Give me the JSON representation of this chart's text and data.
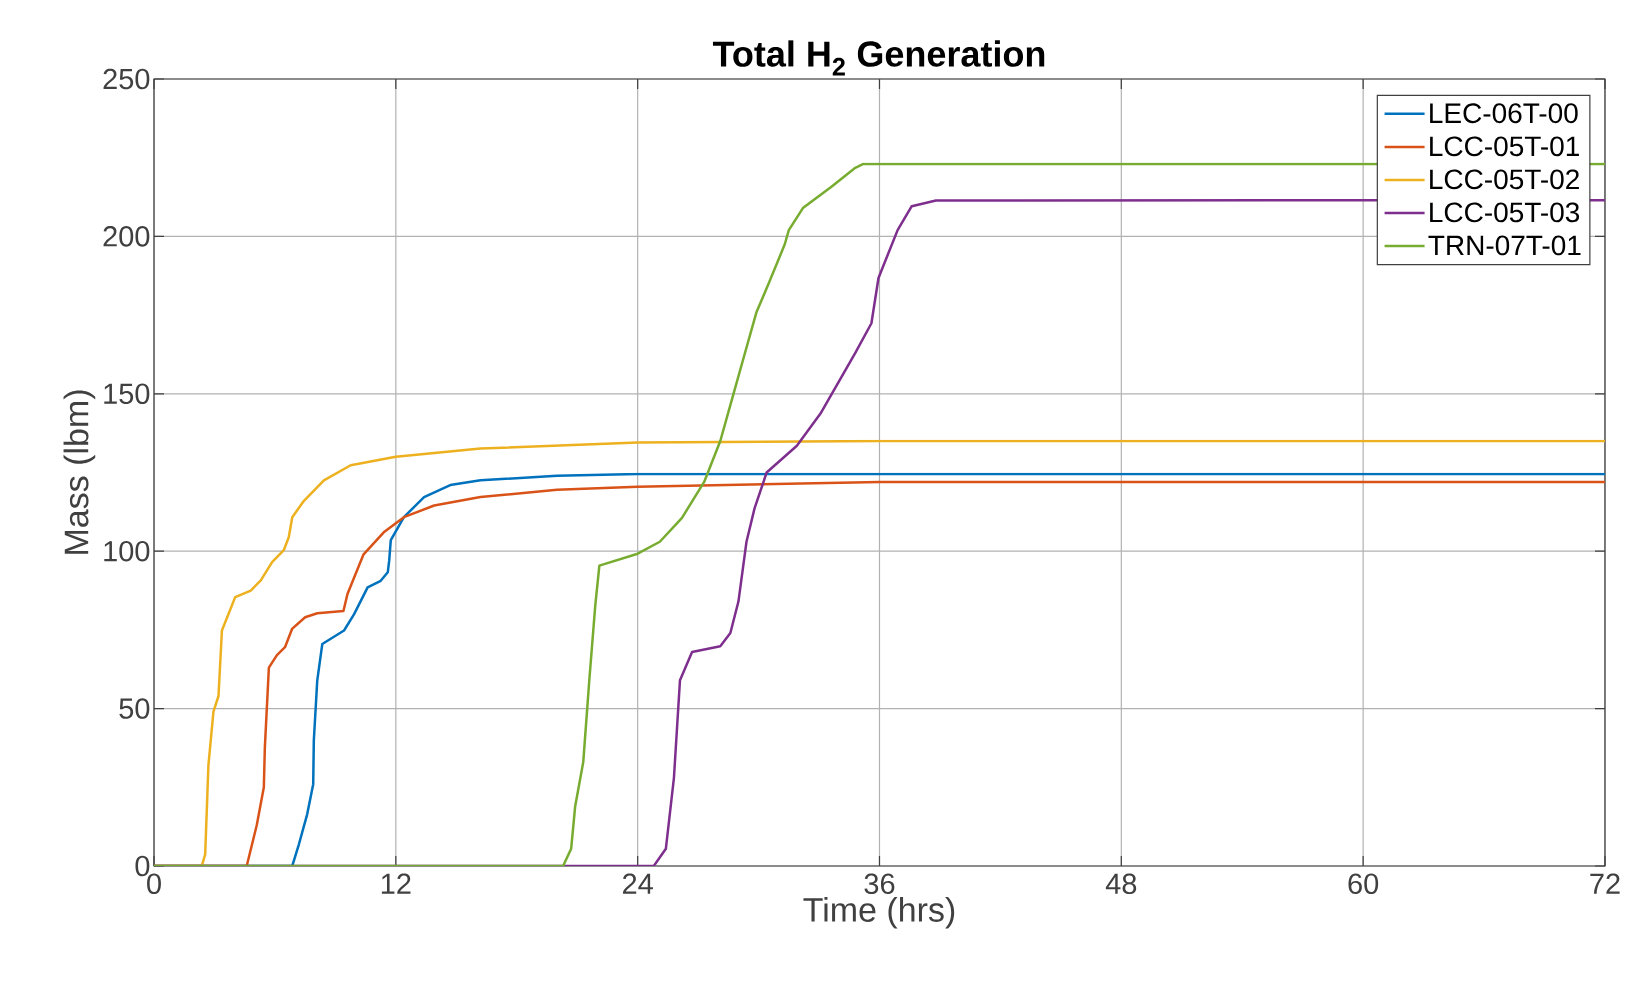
{
  "chart_data": {
    "type": "line",
    "title": "Total H$_{2}$ Generation",
    "xlabel": "Time (hrs)",
    "ylabel": "Mass (lbm)",
    "xlim": [
      0,
      72
    ],
    "ylim": [
      0,
      250
    ],
    "xticks": [
      0,
      12,
      24,
      36,
      48,
      60,
      72
    ],
    "yticks": [
      0,
      50,
      100,
      150,
      200,
      250
    ],
    "grid": true,
    "legend": "top right",
    "line_style": "solid",
    "series": [
      {
        "name": "LEC-06T-00",
        "color": "#0072bd",
        "x": [
          0,
          6.86,
          7.19,
          7.6,
          7.9,
          7.93,
          8.1,
          8.35,
          9.43,
          9.93,
          10.6,
          11.25,
          11.6,
          11.67,
          11.75,
          12.4,
          13.4,
          14.7,
          16.2,
          20,
          24,
          72
        ],
        "values": [
          0,
          0,
          6.9,
          16.4,
          26,
          39.8,
          58.9,
          70.5,
          74.8,
          80,
          88.5,
          90.6,
          93.3,
          97,
          103.5,
          110.8,
          117.2,
          121,
          122.5,
          124,
          124.5,
          124.5
        ]
      },
      {
        "name": "LCC-05T-01",
        "color": "#d95319",
        "x": [
          0,
          4.6,
          5.1,
          5.45,
          5.5,
          5.7,
          6.1,
          6.5,
          6.85,
          7.5,
          8.1,
          9.4,
          9.6,
          10.4,
          11.4,
          12.4,
          13.9,
          16.2,
          20,
          24,
          36,
          72
        ],
        "values": [
          0,
          0,
          13,
          25,
          37.6,
          63,
          67,
          69.5,
          75.3,
          79,
          80.3,
          81,
          86.4,
          99,
          106,
          110.8,
          114.5,
          117.2,
          119.5,
          120.5,
          122,
          122
        ]
      },
      {
        "name": "LCC-05T-02",
        "color": "#edb120",
        "x": [
          0,
          2.37,
          2.54,
          2.7,
          2.95,
          3.2,
          3.37,
          4.03,
          4.8,
          5.3,
          5.86,
          6.44,
          6.69,
          6.86,
          7.44,
          8.43,
          9.76,
          12,
          16.2,
          24,
          36,
          72
        ],
        "values": [
          0,
          0,
          3.7,
          32,
          49,
          54,
          74.8,
          85.4,
          87.5,
          90.7,
          96.5,
          100.3,
          104.5,
          110.8,
          116,
          122.5,
          127.3,
          130,
          132.6,
          134.5,
          135,
          135
        ]
      },
      {
        "name": "LCC-05T-03",
        "color": "#7e2f8e",
        "x": [
          0,
          24.8,
          25.4,
          25.8,
          26.1,
          26.7,
          28.1,
          28.6,
          29,
          29.4,
          29.8,
          30.4,
          31.9,
          33.1,
          34.8,
          35.6,
          35.95,
          36.9,
          37.6,
          38.8,
          72
        ],
        "values": [
          0,
          0,
          5.5,
          28,
          59,
          68,
          69.8,
          74,
          84,
          103,
          113.6,
          125,
          133.5,
          144,
          163,
          172.4,
          186.8,
          202,
          209.6,
          211.4,
          211.5
        ]
      },
      {
        "name": "TRN-07T-01",
        "color": "#77ac30",
        "x": [
          0,
          20.3,
          20.7,
          20.9,
          21.3,
          21.6,
          21.9,
          22.1,
          24,
          25.1,
          26.2,
          27.3,
          28.1,
          28.7,
          29.3,
          29.9,
          30.5,
          31.3,
          31.5,
          32.2,
          33.6,
          34.8,
          35.2,
          72
        ],
        "values": [
          0,
          0,
          5.5,
          19,
          33,
          59,
          83,
          95.4,
          99.2,
          103,
          110.6,
          122,
          135,
          148.7,
          162.4,
          176,
          185,
          197.5,
          202,
          209,
          215.7,
          221.8,
          223,
          223
        ]
      }
    ]
  }
}
